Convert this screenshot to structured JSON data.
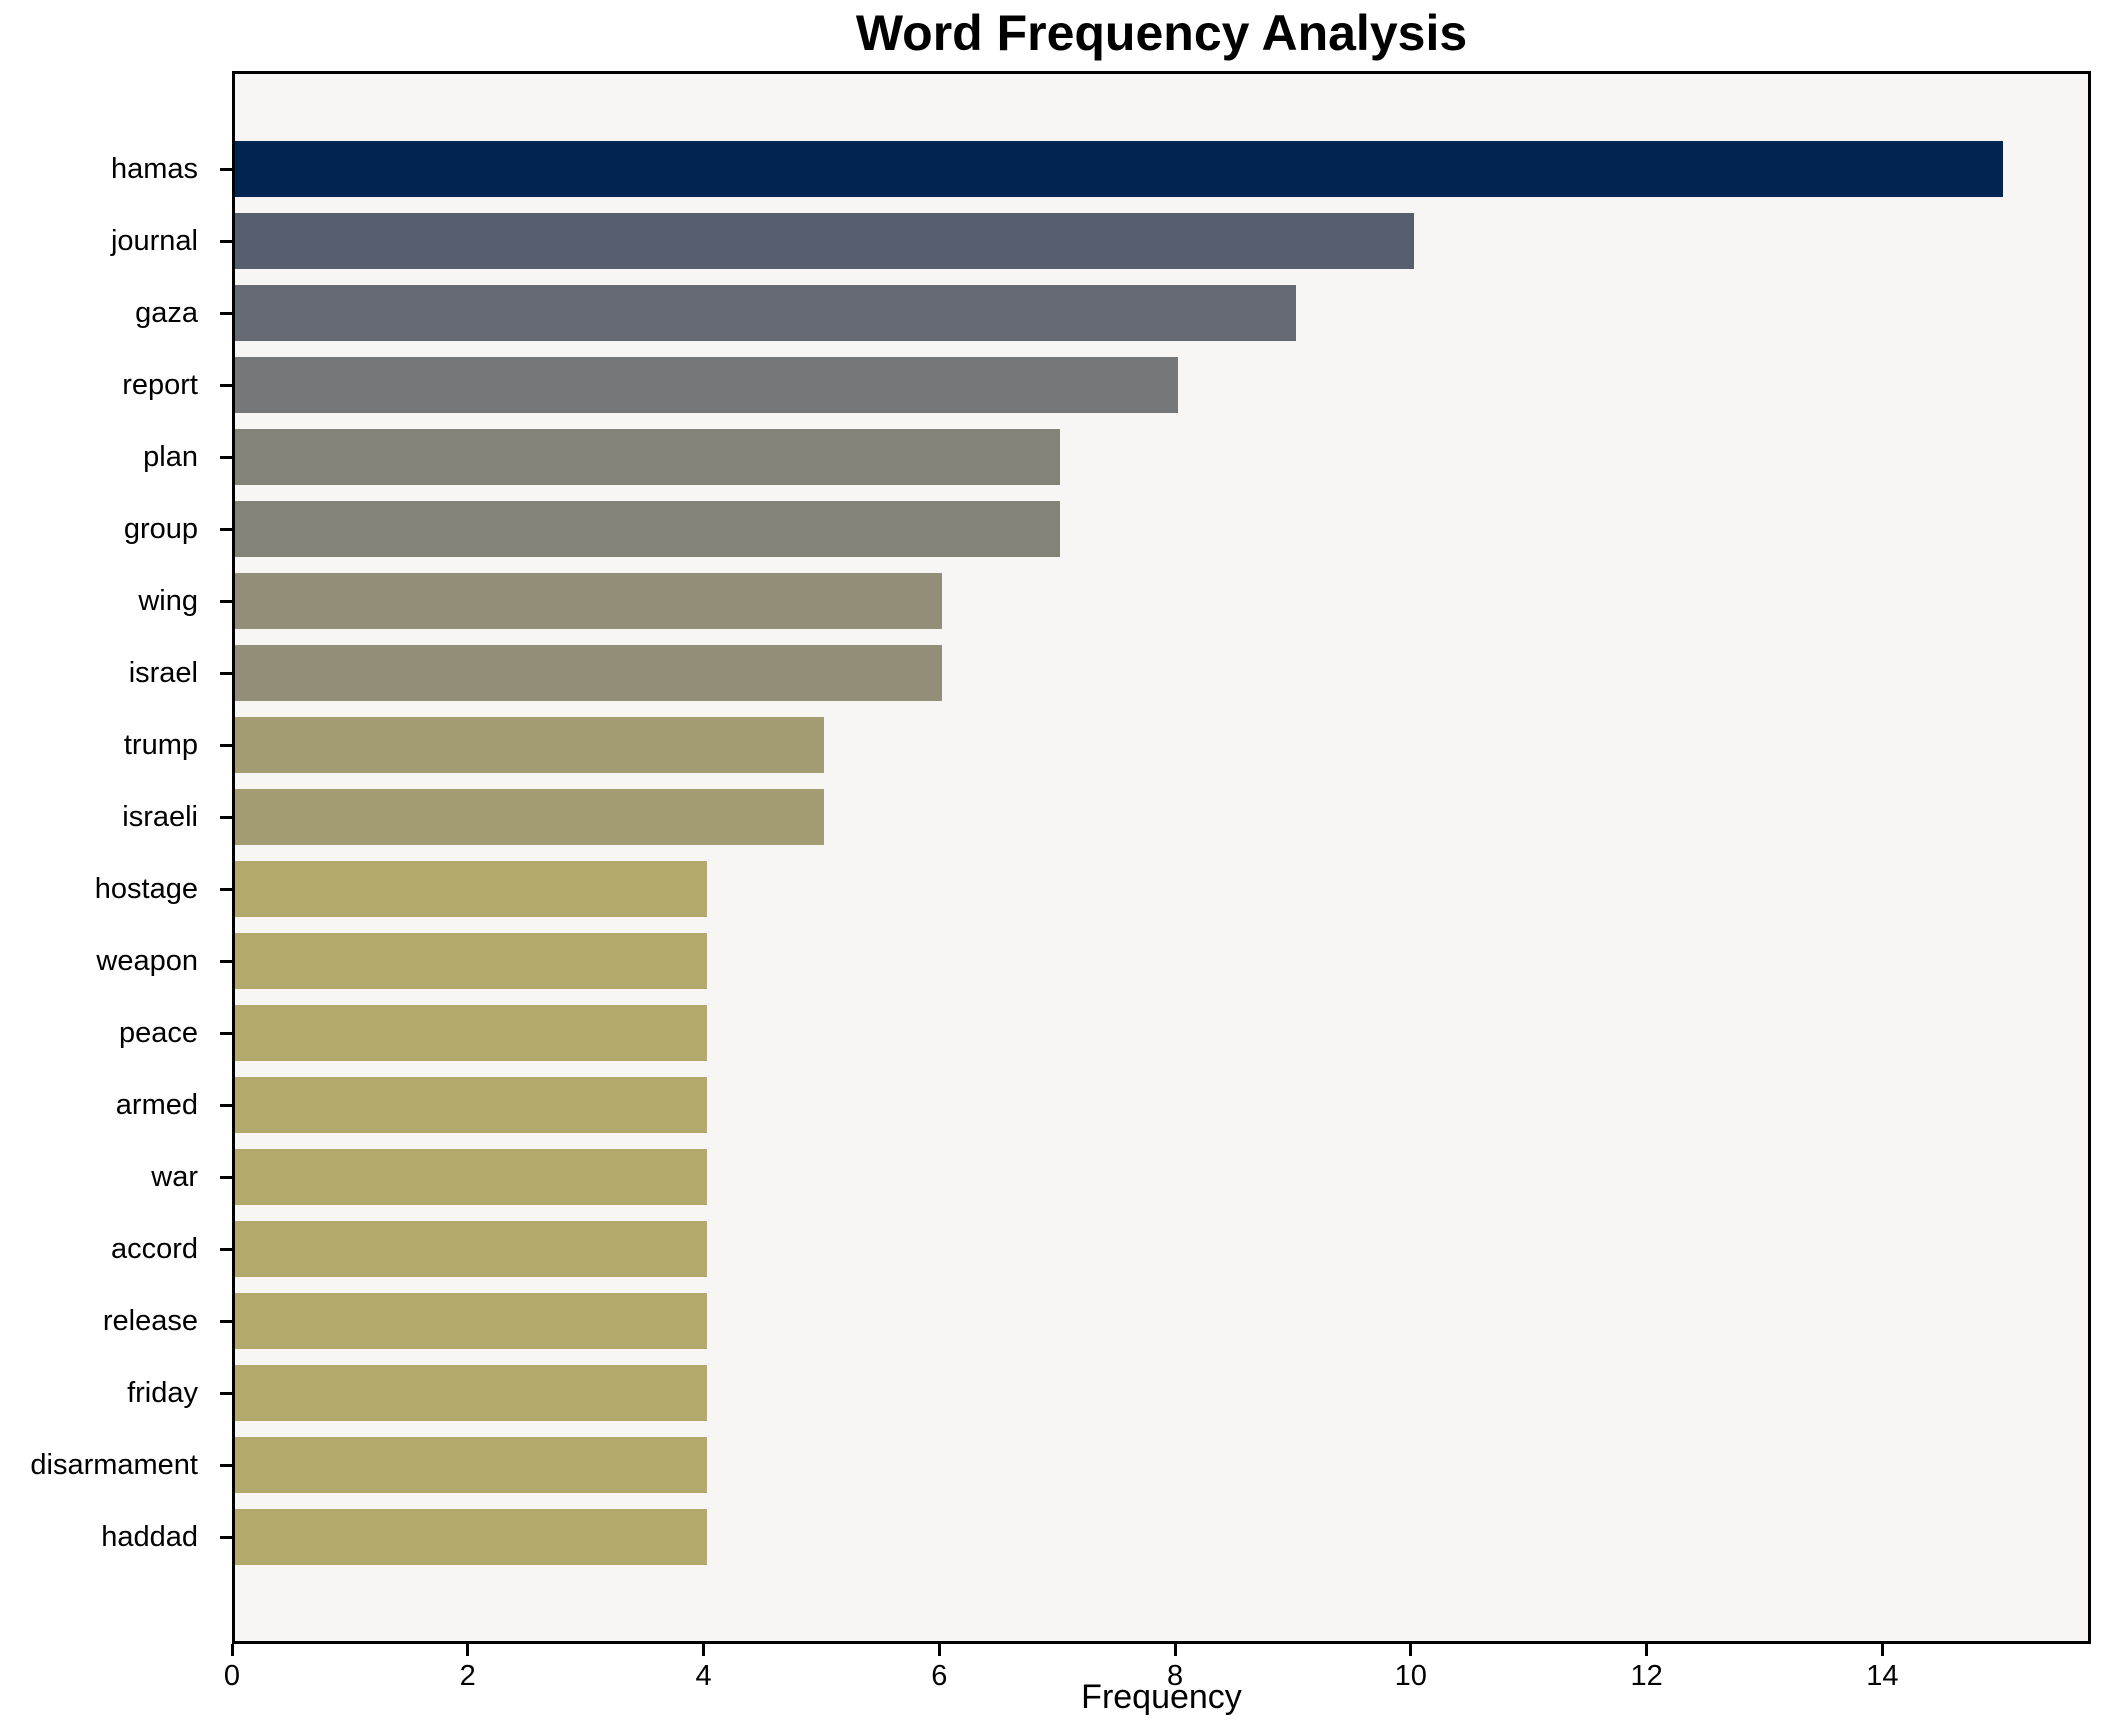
{
  "chart_data": {
    "type": "bar",
    "orientation": "horizontal",
    "title": "Word Frequency Analysis",
    "xlabel": "Frequency",
    "ylabel": "",
    "categories": [
      "hamas",
      "journal",
      "gaza",
      "report",
      "plan",
      "group",
      "wing",
      "israel",
      "trump",
      "israeli",
      "hostage",
      "weapon",
      "peace",
      "armed",
      "war",
      "accord",
      "release",
      "friday",
      "disarmament",
      "haddad"
    ],
    "values": [
      15,
      10,
      9,
      8,
      7,
      7,
      6,
      6,
      5,
      5,
      4,
      4,
      4,
      4,
      4,
      4,
      4,
      4,
      4,
      4
    ],
    "bar_colors": [
      "#012550",
      "#575e6e",
      "#656a72",
      "#757779",
      "#848378",
      "#848378",
      "#938e77",
      "#938e77",
      "#a39c73",
      "#a39c73",
      "#b2a96a",
      "#b2a96a",
      "#b2a96a",
      "#b2a96a",
      "#b2a96a",
      "#b2a96a",
      "#b2a96a",
      "#b2a96a",
      "#b2a96a",
      "#b2a96a"
    ],
    "xlim": [
      0,
      15.77
    ],
    "xticks": [
      0,
      2,
      4,
      6,
      8,
      10,
      12,
      14
    ],
    "grid": false,
    "legend_position": "none",
    "plot_background": "#f7f6f4",
    "figure_background": "#ffffff",
    "frame_color": "#000000",
    "accent_color_max": "#012550",
    "accent_color_min": "#b2a96a"
  }
}
